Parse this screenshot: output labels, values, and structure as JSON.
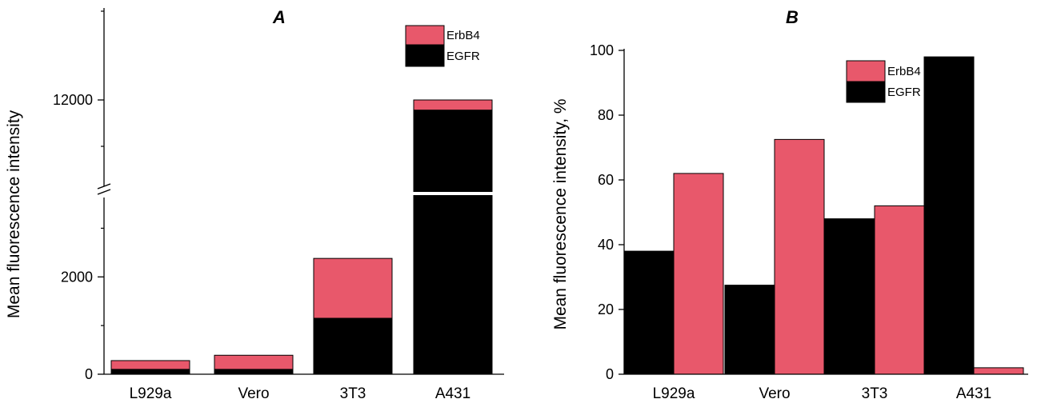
{
  "chart_data": [
    {
      "type": "bar",
      "stacked": true,
      "title": "A",
      "ylabel": "Mean fluorescence intensity",
      "xlabel": "",
      "categories": [
        "L929a",
        "Vero",
        "3T3",
        "A431"
      ],
      "series": [
        {
          "name": "EGFR",
          "color": "#000000",
          "values": [
            100,
            100,
            1150,
            11800
          ]
        },
        {
          "name": "ErbB4",
          "color": "#e8586b",
          "values": [
            180,
            290,
            1230,
            200
          ]
        }
      ],
      "axis_breaks": [
        [
          3500,
          11000
        ]
      ],
      "ylim": [
        0,
        12500
      ],
      "yticks": [
        0,
        2000,
        12000
      ],
      "legend": {
        "position": "top-right",
        "entries": [
          "ErbB4",
          "EGFR"
        ]
      }
    },
    {
      "type": "bar",
      "stacked": false,
      "title": "B",
      "ylabel": "Mean fluorescence intensity, %",
      "xlabel": "",
      "categories": [
        "L929a",
        "Vero",
        "3T3",
        "A431"
      ],
      "series": [
        {
          "name": "EGFR",
          "color": "#000000",
          "values": [
            38,
            27.5,
            48,
            98
          ]
        },
        {
          "name": "ErbB4",
          "color": "#e8586b",
          "values": [
            62,
            72.5,
            52,
            2
          ]
        }
      ],
      "ylim": [
        0,
        100
      ],
      "yticks": [
        0,
        20,
        40,
        60,
        80,
        100
      ],
      "legend": {
        "position": "top-right",
        "entries": [
          "ErbB4",
          "EGFR"
        ]
      }
    }
  ]
}
